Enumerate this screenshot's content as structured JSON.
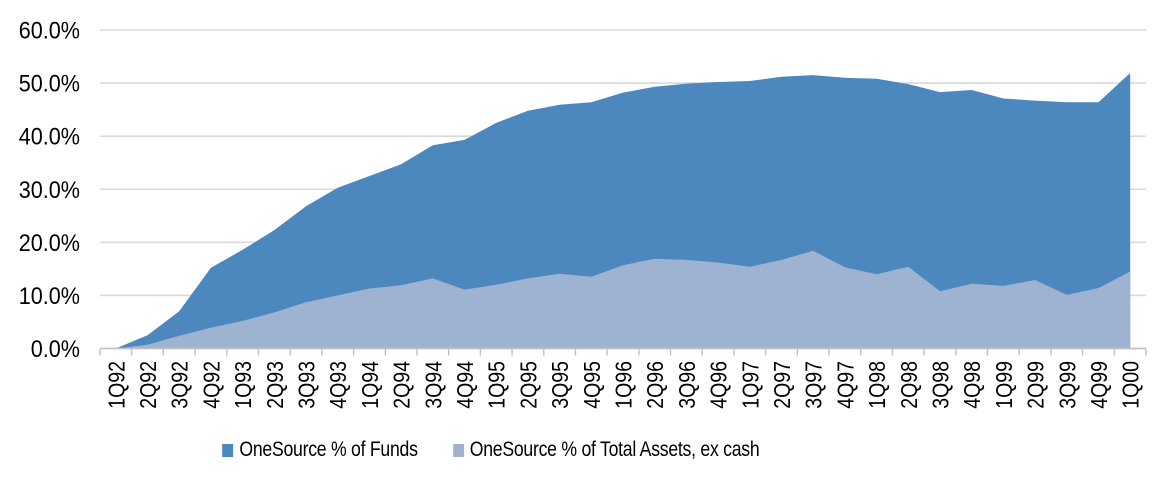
{
  "chart_data": {
    "type": "area",
    "title": "",
    "categories": [
      "1Q92",
      "2Q92",
      "3Q92",
      "4Q92",
      "1Q93",
      "2Q93",
      "3Q93",
      "4Q93",
      "1Q94",
      "2Q94",
      "3Q94",
      "4Q94",
      "1Q95",
      "2Q95",
      "3Q95",
      "4Q95",
      "1Q96",
      "2Q96",
      "3Q96",
      "4Q96",
      "1Q97",
      "2Q97",
      "3Q97",
      "4Q97",
      "1Q98",
      "2Q98",
      "3Q98",
      "4Q98",
      "1Q99",
      "2Q99",
      "3Q99",
      "4Q99",
      "1Q00"
    ],
    "series": [
      {
        "name": "OneSource % of Funds",
        "color": "#4C87BE",
        "values": [
          0,
          2.5,
          7.0,
          15.2,
          18.6,
          22.3,
          26.8,
          30.3,
          32.5,
          34.7,
          38.3,
          39.3,
          42.5,
          44.8,
          45.9,
          46.4,
          48.2,
          49.3,
          49.9,
          50.2,
          50.4,
          51.2,
          51.5,
          51.0,
          50.8,
          49.8,
          48.3,
          48.7,
          47.1,
          46.7,
          46.4,
          46.4,
          51.9
        ]
      },
      {
        "name": "OneSource % of Total Assets, ex cash",
        "color": "#9DB3D1",
        "values": [
          0,
          0.7,
          2.4,
          3.9,
          5.2,
          6.8,
          8.7,
          10.0,
          11.3,
          11.9,
          13.2,
          11.1,
          12.0,
          13.2,
          14.1,
          13.5,
          15.7,
          16.9,
          16.7,
          16.2,
          15.4,
          16.7,
          18.4,
          15.3,
          14.0,
          15.4,
          10.8,
          12.2,
          11.8,
          12.9,
          10.1,
          11.4,
          14.5
        ]
      }
    ],
    "y_axis": {
      "min": 0,
      "max": 60,
      "step": 10,
      "tick_labels": [
        "0.0%",
        "10.0%",
        "20.0%",
        "30.0%",
        "40.0%",
        "50.0%",
        "60.0%"
      ]
    },
    "grid": true,
    "legend_position": "bottom",
    "colors": {
      "gridline": "#D9D9D9",
      "axis_line": "#BFBFBF",
      "text": "#000000"
    }
  }
}
